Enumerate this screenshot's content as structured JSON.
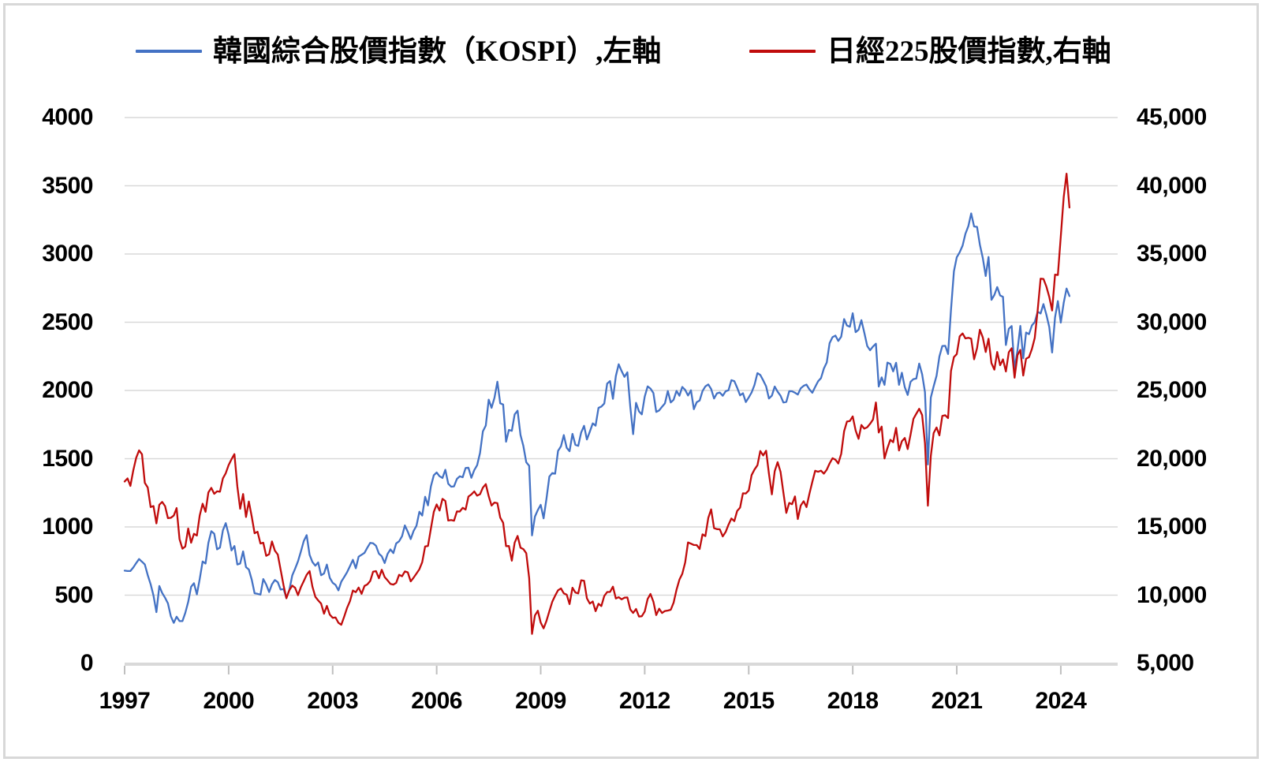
{
  "legend": [
    {
      "label": "韓國綜合股價指數（KOSPI）,左軸",
      "color": "#4472C4"
    },
    {
      "label": "日經225股價指數,右軸",
      "color": "#C00C0C"
    }
  ],
  "left_axis": {
    "labels": [
      "4000",
      "3500",
      "3000",
      "2500",
      "2000",
      "1500",
      "1000",
      "500",
      "0"
    ],
    "values": [
      4000,
      3500,
      3000,
      2500,
      2000,
      1500,
      1000,
      500,
      0
    ]
  },
  "right_axis": {
    "labels": [
      "45,000",
      "40,000",
      "35,000",
      "30,000",
      "25,000",
      "20,000",
      "15,000",
      "10,000",
      "5,000"
    ],
    "values": [
      45000,
      40000,
      35000,
      30000,
      25000,
      20000,
      15000,
      10000,
      5000
    ]
  },
  "x_axis": {
    "labels": [
      "1997",
      "2000",
      "2003",
      "2006",
      "2009",
      "2012",
      "2015",
      "2018",
      "2021",
      "2024"
    ],
    "years": [
      1997,
      2000,
      2003,
      2006,
      2009,
      2012,
      2015,
      2018,
      2021,
      2024
    ]
  },
  "chart_data": {
    "type": "line",
    "title": "",
    "x_unit": "monthly",
    "x_start": 1997.0,
    "x_end": 2024.25,
    "x_range": [
      1997.0,
      2025.64
    ],
    "left_ylim": [
      0,
      4000
    ],
    "right_ylim": [
      5000,
      45000
    ],
    "grid": true,
    "grid_color": "#D9D9D9",
    "axis_line_color": "#D9D9D9",
    "tick_color": "#BFBFBF",
    "legend_position": "top",
    "series": [
      {
        "name": "韓國綜合股價指數（KOSPI）,左軸",
        "axis": "left",
        "color": "#4472C4",
        "values": [
          680,
          677,
          677,
          703,
          735,
          765,
          745,
          725,
          647,
          580,
          497,
          376,
          567,
          516,
          481,
          440,
          345,
          297,
          342,
          310,
          310,
          370,
          450,
          562,
          587,
          506,
          618,
          747,
          732,
          883,
          969,
          950,
          836,
          849,
          975,
          1028,
          943,
          828,
          860,
          725,
          732,
          821,
          705,
          688,
          613,
          514,
          510,
          504,
          618,
          578,
          523,
          580,
          611,
          595,
          541,
          545,
          479,
          537,
          644,
          693,
          748,
          820,
          896,
          940,
          796,
          743,
          716,
          740,
          646,
          659,
          724,
          627,
          591,
          575,
          535,
          599,
          633,
          669,
          713,
          759,
          697,
          782,
          796,
          810,
          848,
          883,
          880,
          862,
          804,
          785,
          735,
          803,
          835,
          808,
          879,
          895,
          932,
          1011,
          965,
          911,
          970,
          1008,
          1111,
          1083,
          1221,
          1158,
          1297,
          1379,
          1399,
          1371,
          1359,
          1419,
          1317,
          1295,
          1297,
          1352,
          1371,
          1364,
          1432,
          1434,
          1360,
          1417,
          1452,
          1542,
          1700,
          1743,
          1933,
          1873,
          1946,
          2064,
          1906,
          1897,
          1624,
          1711,
          1704,
          1825,
          1852,
          1674,
          1594,
          1474,
          1448,
          938,
          1076,
          1124,
          1162,
          1063,
          1206,
          1369,
          1395,
          1390,
          1557,
          1591,
          1673,
          1580,
          1555,
          1682,
          1602,
          1594,
          1692,
          1741,
          1641,
          1698,
          1759,
          1742,
          1872,
          1882,
          1904,
          2051,
          2069,
          1939,
          2106,
          2192,
          2142,
          2100,
          2133,
          1880,
          1680,
          1909,
          1847,
          1825,
          1955,
          2030,
          2014,
          1981,
          1843,
          1854,
          1881,
          1905,
          1996,
          1912,
          1932,
          1997,
          1961,
          2026,
          2004,
          1963,
          2001,
          1863,
          1914,
          1926,
          1996,
          2030,
          2044,
          2011,
          1941,
          1979,
          1985,
          1961,
          1994,
          2002,
          2076,
          2068,
          2020,
          1964,
          1980,
          1915,
          1949,
          1985,
          2041,
          2127,
          2114,
          2074,
          2030,
          1941,
          1962,
          2029,
          1991,
          1961,
          1912,
          1916,
          1995,
          1994,
          1983,
          1970,
          2016,
          2034,
          2043,
          2008,
          1983,
          2026,
          2067,
          2091,
          2160,
          2205,
          2347,
          2391,
          2402,
          2363,
          2394,
          2523,
          2476,
          2467,
          2566,
          2427,
          2445,
          2515,
          2423,
          2326,
          2295,
          2322,
          2343,
          2029,
          2096,
          2041,
          2204,
          2195,
          2140,
          2203,
          2041,
          2130,
          2024,
          1967,
          2063,
          2083,
          2087,
          2197,
          2119,
          1987,
          1458,
          1948,
          2030,
          2108,
          2249,
          2326,
          2327,
          2267,
          2591,
          2873,
          2976,
          3013,
          3061,
          3148,
          3204,
          3297,
          3202,
          3199,
          3069,
          2971,
          2839,
          2978,
          2664,
          2700,
          2758,
          2696,
          2686,
          2333,
          2452,
          2472,
          2155,
          2294,
          2473,
          2236,
          2425,
          2413,
          2477,
          2502,
          2577,
          2564,
          2633,
          2556,
          2465,
          2278,
          2535,
          2655,
          2497,
          2642,
          2747,
          2692
        ]
      },
      {
        "name": "日經225股價指數,右軸",
        "axis": "right",
        "color": "#C00C0C",
        "values": [
          18330,
          18557,
          18003,
          19151,
          20069,
          20605,
          20331,
          18229,
          17888,
          16459,
          16532,
          15259,
          16628,
          16831,
          16527,
          15641,
          15671,
          15830,
          16379,
          14108,
          13406,
          13564,
          14884,
          13842,
          14499,
          14368,
          15837,
          16702,
          16112,
          17530,
          17861,
          17430,
          17606,
          17582,
          18558,
          18934,
          19540,
          19959,
          20337,
          17974,
          16332,
          17411,
          15727,
          16861,
          15747,
          14540,
          14649,
          13786,
          13844,
          12884,
          12999,
          13934,
          13262,
          12969,
          11861,
          10714,
          9775,
          10366,
          10697,
          10543,
          9998,
          10588,
          11025,
          11493,
          11764,
          10622,
          9878,
          9619,
          9383,
          8640,
          9216,
          8579,
          8339,
          8363,
          7973,
          7831,
          8425,
          9083,
          9563,
          10343,
          10219,
          10559,
          10100,
          10677,
          10784,
          11042,
          11715,
          11762,
          11236,
          11859,
          11326,
          11082,
          10824,
          10772,
          10899,
          11489,
          11388,
          11740,
          11669,
          11009,
          11277,
          11584,
          11900,
          12414,
          13574,
          13606,
          14872,
          16111,
          16649,
          16205,
          17060,
          16906,
          15467,
          15505,
          15457,
          16141,
          16128,
          16399,
          16274,
          17226,
          17383,
          17604,
          17288,
          17400,
          17876,
          18138,
          17249,
          16569,
          16786,
          16738,
          15681,
          15308,
          13592,
          13603,
          12526,
          13850,
          14339,
          13481,
          13377,
          13073,
          11260,
          7163,
          8512,
          8860,
          7994,
          7568,
          8110,
          8828,
          9523,
          9958,
          10357,
          10493,
          10133,
          10035,
          9346,
          10546,
          10198,
          10126,
          11090,
          11057,
          9769,
          9383,
          9537,
          8824,
          9369,
          9202,
          9937,
          10229,
          10238,
          10624,
          9755,
          9850,
          9694,
          9816,
          9833,
          8955,
          8700,
          8988,
          8435,
          8455,
          8803,
          9723,
          10084,
          9521,
          8543,
          9007,
          8695,
          8840,
          8870,
          8928,
          9446,
          10395,
          11139,
          11559,
          12398,
          13861,
          13775,
          13677,
          13668,
          13389,
          14456,
          14328,
          15662,
          16291,
          14915,
          14841,
          14828,
          14304,
          14632,
          15162,
          15621,
          15425,
          16174,
          16414,
          17460,
          17451,
          17674,
          18798,
          19207,
          19520,
          20563,
          20236,
          20585,
          18890,
          17388,
          19083,
          19747,
          19034,
          17518,
          16027,
          16759,
          16666,
          17235,
          15576,
          16569,
          16887,
          16450,
          17425,
          18308,
          19114,
          19041,
          19119,
          18909,
          19197,
          19651,
          20033,
          19925,
          19646,
          20356,
          22012,
          22725,
          22765,
          23098,
          22068,
          21454,
          22468,
          22202,
          22305,
          22554,
          22865,
          24120,
          21920,
          22351,
          20015,
          20773,
          21385,
          21206,
          22259,
          20601,
          21276,
          21522,
          20704,
          21756,
          22927,
          23294,
          23657,
          23205,
          21143,
          16553,
          20194,
          21878,
          22288,
          21710,
          23140,
          23185,
          22977,
          26434,
          27444,
          27663,
          28966,
          29179,
          28813,
          28860,
          28792,
          27284,
          28090,
          29453,
          28893,
          27822,
          28792,
          27002,
          26527,
          27821,
          26848,
          27280,
          26393,
          27802,
          28092,
          25937,
          27587,
          27969,
          26095,
          27327,
          27446,
          28041,
          28856,
          30888,
          33189,
          33172,
          32619,
          31858,
          30859,
          33487,
          33464,
          36287,
          39166,
          40888,
          38406
        ]
      }
    ]
  }
}
